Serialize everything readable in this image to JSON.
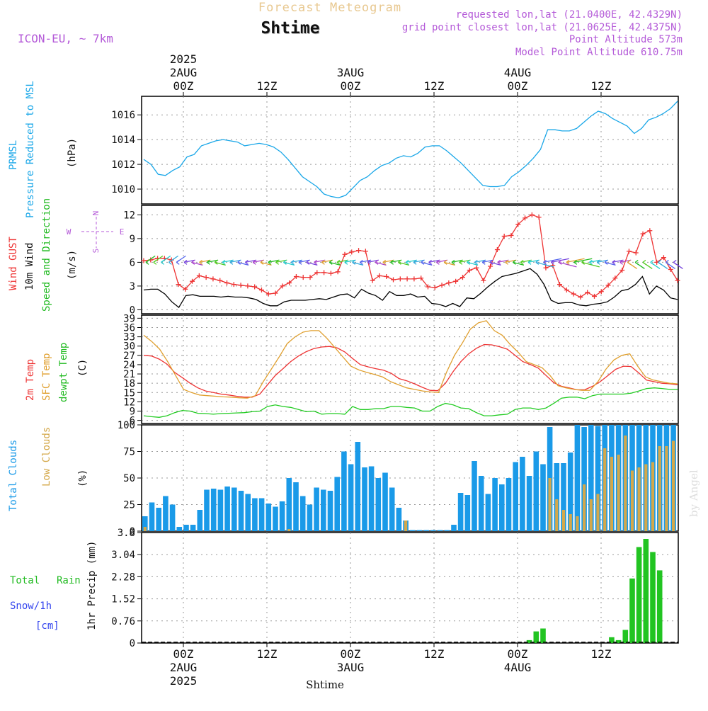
{
  "header": {
    "subtitle": "Forecast Meteogram",
    "location": "Shtime",
    "model": "ICON-EU, ~ 7km",
    "requested": "requested lon,lat (21.0400E, 42.4329N)",
    "gridpoint": "grid point closest lon,lat (21.0625E, 42.4375N)",
    "point_alt": "Point Altitude 573m",
    "model_alt": "Model Point Altitude 610.75m"
  },
  "footer_location": "Shtime",
  "watermark": "by Angel",
  "colors": {
    "pressure": "#1aa7e8",
    "gust": "#ee3333",
    "wind": "#000000",
    "temp2m": "#ee3333",
    "sfc": "#e0a030",
    "dew": "#22cc22",
    "total_clouds": "#1a9ae8",
    "low_clouds": "#d4a84a",
    "rain": "#22c422",
    "snow_label": "#3344ee",
    "header_purple": "#b45ad8",
    "subtitle": "#e8c890"
  },
  "time_axis": {
    "top_labels": [
      {
        "t": 6,
        "lines": [
          "2025",
          "2AUG",
          "00Z"
        ]
      },
      {
        "t": 18,
        "lines": [
          "12Z"
        ]
      },
      {
        "t": 30,
        "lines": [
          "3AUG",
          "00Z"
        ]
      },
      {
        "t": 42,
        "lines": [
          "12Z"
        ]
      },
      {
        "t": 54,
        "lines": [
          "4AUG",
          "00Z"
        ]
      },
      {
        "t": 66,
        "lines": [
          "12Z"
        ]
      }
    ],
    "bottom_labels": [
      {
        "t": 6,
        "lines": [
          "00Z",
          "2AUG",
          "2025"
        ]
      },
      {
        "t": 18,
        "lines": [
          "12Z"
        ]
      },
      {
        "t": 30,
        "lines": [
          "00Z",
          "3AUG"
        ]
      },
      {
        "t": 42,
        "lines": [
          "12Z"
        ]
      },
      {
        "t": 54,
        "lines": [
          "00Z",
          "4AUG"
        ]
      },
      {
        "t": 66,
        "lines": [
          "12Z"
        ]
      }
    ]
  },
  "chart_data": [
    {
      "type": "line",
      "panel": "pressure",
      "labels": {
        "left1": "PRMSL",
        "left2": "Pressure Reduced to MSL",
        "unit": "(hPa)"
      },
      "ylim": [
        1008.8,
        1017.5
      ],
      "yticks": [
        1010,
        1012,
        1014,
        1016
      ],
      "series": [
        {
          "name": "PRMSL",
          "values": [
            1012.4,
            1012.0,
            1011.2,
            1011.1,
            1011.5,
            1011.8,
            1012.6,
            1012.8,
            1013.5,
            1013.7,
            1013.9,
            1014.0,
            1013.9,
            1013.8,
            1013.5,
            1013.6,
            1013.7,
            1013.6,
            1013.4,
            1013.0,
            1012.4,
            1011.7,
            1011.0,
            1010.6,
            1010.2,
            1009.6,
            1009.4,
            1009.3,
            1009.5,
            1010.1,
            1010.7,
            1011.0,
            1011.5,
            1011.9,
            1012.1,
            1012.5,
            1012.7,
            1012.6,
            1012.9,
            1013.4,
            1013.5,
            1013.5,
            1013.1,
            1012.6,
            1012.1,
            1011.5,
            1010.9,
            1010.3,
            1010.2,
            1010.2,
            1010.3,
            1011.0,
            1011.4,
            1011.9,
            1012.5,
            1013.2,
            1014.8,
            1014.8,
            1014.7,
            1014.7,
            1014.9,
            1015.4,
            1015.9,
            1016.3,
            1016.1,
            1015.7,
            1015.4,
            1015.1,
            1014.5,
            1014.9,
            1015.6,
            1015.8,
            1016.1,
            1016.5,
            1017.1
          ]
        }
      ]
    },
    {
      "type": "line",
      "panel": "wind",
      "labels": {
        "gust": "Wind GUST",
        "wind": "10m Wind",
        "dir": "Speed and Direction",
        "unit": "(m/s)",
        "compass_n": "N",
        "compass_s": "S",
        "compass_w": "W",
        "compass_e": "E"
      },
      "ylim": [
        -0.5,
        13.2
      ],
      "yticks": [
        0,
        3,
        6,
        9,
        12
      ],
      "series": [
        {
          "name": "Wind GUST",
          "values": [
            6.2,
            6.3,
            6.5,
            6.5,
            6.3,
            3.2,
            2.6,
            3.6,
            4.3,
            4.1,
            3.9,
            3.7,
            3.4,
            3.2,
            3.1,
            3.0,
            2.9,
            2.5,
            2.0,
            2.1,
            3.0,
            3.4,
            4.2,
            4.1,
            4.1,
            4.7,
            4.7,
            4.6,
            4.8,
            7.0,
            7.3,
            7.5,
            7.4,
            3.7,
            4.3,
            4.2,
            3.8,
            3.9,
            3.9,
            3.9,
            4.0,
            2.9,
            2.8,
            3.1,
            3.4,
            3.6,
            4.1,
            5.0,
            5.3,
            3.7,
            5.5,
            7.6,
            9.3,
            9.4,
            10.8,
            11.6,
            12.0,
            11.7,
            5.3,
            5.6,
            3.2,
            2.5,
            2.0,
            1.6,
            2.2,
            1.7,
            2.3,
            3.1,
            4.0,
            5.0,
            7.4,
            7.2,
            9.6,
            10.0,
            6.0,
            6.6,
            5.1,
            3.7
          ]
        },
        {
          "name": "10m Wind",
          "values": [
            2.5,
            2.6,
            2.6,
            2.0,
            1.0,
            0.3,
            1.8,
            1.9,
            1.7,
            1.7,
            1.7,
            1.6,
            1.7,
            1.6,
            1.6,
            1.5,
            1.3,
            0.8,
            0.5,
            0.5,
            1.0,
            1.2,
            1.2,
            1.2,
            1.3,
            1.4,
            1.3,
            1.6,
            1.9,
            2.0,
            1.5,
            2.6,
            2.1,
            1.8,
            1.2,
            2.3,
            1.8,
            1.8,
            2.0,
            1.6,
            1.7,
            0.8,
            0.7,
            0.4,
            0.8,
            0.4,
            1.5,
            1.4,
            2.1,
            2.9,
            3.6,
            4.2,
            4.4,
            4.6,
            4.9,
            5.2,
            4.5,
            3.2,
            1.2,
            0.8,
            0.9,
            0.9,
            0.6,
            0.5,
            0.7,
            0.8,
            1.0,
            1.6,
            2.4,
            2.6,
            3.2,
            4.2,
            2.0,
            3.0,
            2.5,
            1.5,
            1.3
          ]
        }
      ]
    },
    {
      "type": "line",
      "panel": "temperature",
      "labels": {
        "t2m": "2m Temp",
        "sfc": "SFC Temp",
        "dew": "dewpt Temp",
        "unit": "(C)"
      },
      "ylim": [
        5,
        40
      ],
      "yticks": [
        6,
        9,
        12,
        15,
        18,
        21,
        24,
        27,
        30,
        33,
        36,
        39
      ],
      "series": [
        {
          "name": "2m Temp",
          "values": [
            27.0,
            26.8,
            25.8,
            24.2,
            21.5,
            19.8,
            18.0,
            16.5,
            15.5,
            15.0,
            14.5,
            14.2,
            13.8,
            13.5,
            13.5,
            14.5,
            17.5,
            20.5,
            22.7,
            25.0,
            26.8,
            28.2,
            29.2,
            29.7,
            29.9,
            29.4,
            28.1,
            26.0,
            24.0,
            23.3,
            22.7,
            22.2,
            21.2,
            19.5,
            18.8,
            17.8,
            16.7,
            15.7,
            15.6,
            18.0,
            21.8,
            25.0,
            27.5,
            29.3,
            30.5,
            30.4,
            29.8,
            29.0,
            27.0,
            25.0,
            24.0,
            22.9,
            20.5,
            18.2,
            17.0,
            16.5,
            15.9,
            15.9,
            17.0,
            18.5,
            20.5,
            22.5,
            23.5,
            23.4,
            21.3,
            19.0,
            18.5,
            18.0,
            17.8,
            17.5
          ]
        },
        {
          "name": "SFC Temp",
          "values": [
            33.5,
            31.5,
            29.0,
            25.0,
            20.5,
            16.0,
            15.0,
            14.2,
            14.0,
            13.8,
            13.6,
            13.5,
            13.3,
            13.2,
            14.0,
            18.5,
            22.5,
            26.5,
            30.8,
            33.0,
            34.5,
            35.0,
            35.0,
            32.5,
            29.5,
            26.5,
            23.5,
            22.3,
            21.5,
            20.8,
            20.0,
            18.5,
            17.5,
            16.5,
            16.0,
            15.5,
            15.2,
            15.0,
            21.5,
            27.0,
            31.0,
            35.5,
            37.5,
            38.2,
            35.0,
            33.5,
            30.5,
            28.0,
            25.0,
            24.0,
            23.0,
            20.5,
            17.2,
            16.5,
            16.0,
            15.7,
            15.7,
            18.5,
            22.5,
            25.5,
            27.0,
            27.5,
            23.5,
            20.0,
            19.0,
            18.5,
            18.0,
            17.8
          ]
        },
        {
          "name": "dewpt Temp",
          "values": [
            7.5,
            7.2,
            7.0,
            7.5,
            8.5,
            9.2,
            9.0,
            8.3,
            8.2,
            8.0,
            8.2,
            8.3,
            8.4,
            8.5,
            8.8,
            9.0,
            10.5,
            11.0,
            10.5,
            10.2,
            9.5,
            8.8,
            9.0,
            8.0,
            8.2,
            8.2,
            8.0,
            10.5,
            9.5,
            9.5,
            9.8,
            9.8,
            10.5,
            10.5,
            10.2,
            10.0,
            9.0,
            9.0,
            10.5,
            11.5,
            11.0,
            10.0,
            9.8,
            8.5,
            7.5,
            7.5,
            7.8,
            8.0,
            9.5,
            10.0,
            10.0,
            9.5,
            10.0,
            11.5,
            13.2,
            13.5,
            13.5,
            13.0,
            14.0,
            14.5,
            14.5,
            14.5,
            14.5,
            14.8,
            15.5,
            16.3,
            16.5,
            16.3,
            16.0,
            16.0
          ]
        }
      ]
    },
    {
      "type": "bar",
      "panel": "clouds",
      "labels": {
        "total": "Total Clouds",
        "low": "Low Clouds",
        "unit": "(%)"
      },
      "ylim": [
        0,
        100
      ],
      "yticks": [
        0,
        25,
        50,
        75,
        100
      ],
      "series": [
        {
          "name": "Total Clouds",
          "values": [
            14,
            27,
            22,
            33,
            25,
            4,
            6,
            6,
            20,
            39,
            40,
            39,
            42,
            41,
            38,
            35,
            31,
            31,
            26,
            23,
            28,
            50,
            46,
            33,
            25,
            41,
            39,
            38,
            51,
            75,
            63,
            84,
            60,
            61,
            50,
            55,
            41,
            22,
            10,
            1,
            1,
            1,
            1,
            1,
            1,
            6,
            36,
            34,
            66,
            52,
            35,
            50,
            44,
            50,
            65,
            70,
            52,
            75,
            63,
            98,
            64,
            64,
            74,
            100,
            98,
            100,
            99,
            100,
            100,
            100,
            100,
            100,
            100,
            100,
            100,
            100,
            100,
            100
          ]
        },
        {
          "name": "Low Clouds",
          "values": [
            4,
            0,
            0,
            0,
            0,
            0,
            0,
            0,
            0,
            0,
            0,
            0,
            0,
            0,
            0,
            0,
            0,
            0,
            0,
            0,
            0,
            2,
            0,
            0,
            0,
            0,
            0,
            0,
            0,
            0,
            0,
            0,
            0,
            0,
            0,
            0,
            0,
            0,
            10,
            0,
            0,
            0,
            0,
            0,
            0,
            0,
            0,
            0,
            0,
            0,
            0,
            0,
            0,
            0,
            0,
            0,
            0,
            0,
            0,
            50,
            30,
            20,
            16,
            14,
            44,
            30,
            35,
            78,
            70,
            72,
            90,
            57,
            60,
            63,
            65,
            80,
            80,
            85
          ]
        }
      ]
    },
    {
      "type": "bar",
      "panel": "precip",
      "labels": {
        "total": "Total",
        "rain": "Rain",
        "snow": "Snow/1h",
        "cm": "[cm]",
        "unit": "1hr Precip (mm)"
      },
      "ylim": [
        0,
        3.8
      ],
      "yticks": [
        0,
        0.76,
        1.52,
        2.28,
        3.04,
        3.8
      ],
      "series": [
        {
          "name": "Rain",
          "values": [
            0,
            0,
            0,
            0,
            0,
            0,
            0,
            0,
            0,
            0,
            0,
            0,
            0,
            0,
            0,
            0,
            0,
            0,
            0,
            0,
            0,
            0,
            0,
            0,
            0,
            0,
            0,
            0,
            0,
            0,
            0,
            0,
            0,
            0,
            0,
            0,
            0,
            0,
            0,
            0,
            0,
            0,
            0,
            0,
            0,
            0,
            0,
            0,
            0,
            0,
            0,
            0,
            0,
            0,
            0,
            0,
            0.1,
            0.4,
            0.5,
            0,
            0,
            0,
            0,
            0,
            0,
            0,
            0,
            0,
            0.2,
            0.1,
            0.45,
            2.22,
            3.3,
            3.58,
            3.13,
            2.5,
            0,
            0
          ]
        }
      ]
    }
  ]
}
